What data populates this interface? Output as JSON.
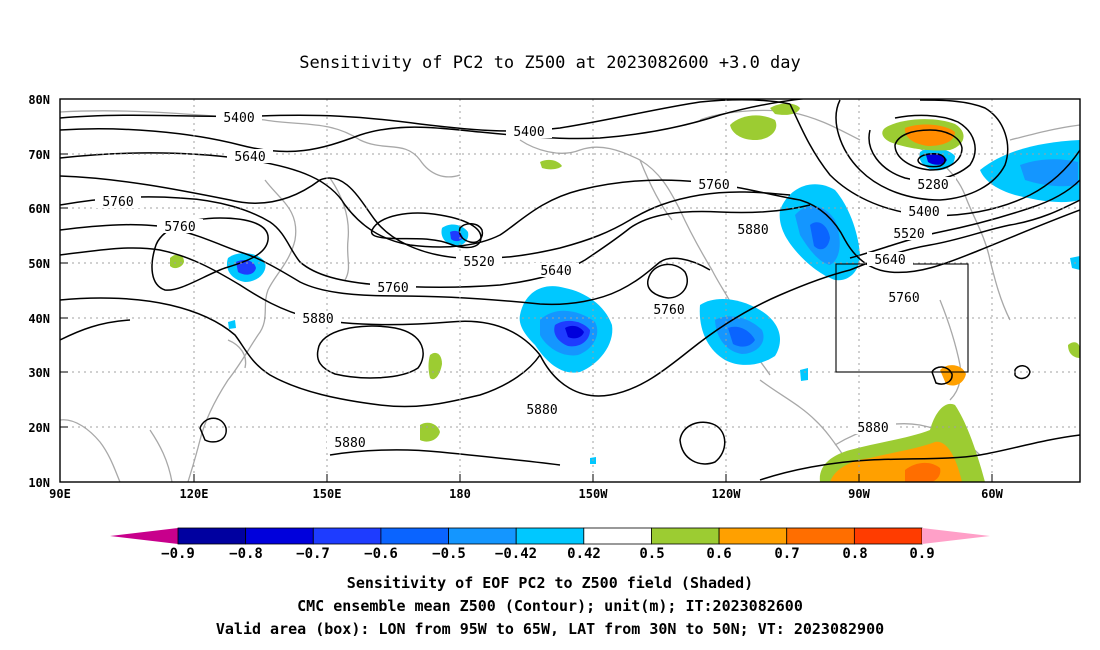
{
  "title": "Sensitivity of PC2 to Z500 at 2023082600 +3.0 day",
  "map": {
    "lon_labels": [
      "90E",
      "120E",
      "150E",
      "180",
      "150W",
      "120W",
      "90W",
      "60W"
    ],
    "lat_labels": [
      "80N",
      "70N",
      "60N",
      "50N",
      "40N",
      "30N",
      "20N",
      "10N"
    ],
    "contour_labels": [
      "5400",
      "5400",
      "5640",
      "5760",
      "5760",
      "5520",
      "5640",
      "5760",
      "5880",
      "5880",
      "5760",
      "5760",
      "5880",
      "5280",
      "5400",
      "5520",
      "5640",
      "5760",
      "5880"
    ],
    "valid_box": {
      "lon_from": "95W",
      "lon_to": "65W",
      "lat_from": "30N",
      "lat_to": "50N"
    },
    "negative_color": "#00c8ff",
    "positive_color": "#9ccc32",
    "strong_positive_color": "#ff8c00"
  },
  "colorbar": {
    "labels": [
      "−0.9",
      "−0.8",
      "−0.7",
      "−0.6",
      "−0.5",
      "−0.42",
      "0.42",
      "0.5",
      "0.6",
      "0.7",
      "0.8",
      "0.9"
    ],
    "colors": [
      "#0000a0",
      "#0000dc",
      "#1e3cff",
      "#0a64ff",
      "#1496ff",
      "#00c8ff",
      "#ffffff",
      "#9ccc32",
      "#ffa000",
      "#ff6e00",
      "#ff3c00",
      "#ff0000"
    ],
    "low_end_color": "#c8008c",
    "high_end_color": "#ffa0c8"
  },
  "caption": {
    "line1": "Sensitivity of EOF PC2 to Z500 field (Shaded)",
    "line2": "CMC ensemble mean Z500 (Contour); unit(m); IT:2023082600",
    "line3": "Valid area (box): LON from 95W to 65W, LAT from 30N to 50N; VT: 2023082900"
  }
}
